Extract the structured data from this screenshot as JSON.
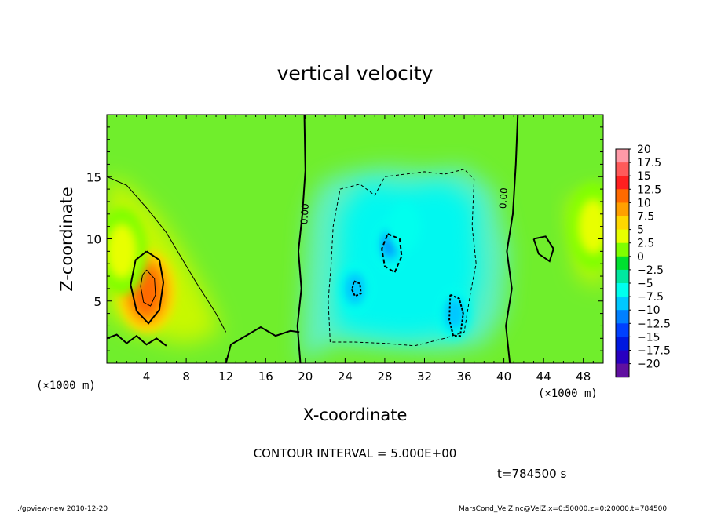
{
  "chart_data": {
    "type": "heatmap",
    "title": "vertical velocity",
    "xlabel": "X-coordinate",
    "ylabel": "Z-coordinate",
    "x_unit_left": "(×1000 m)",
    "x_unit_right": "(×1000 m)",
    "xlim": [
      0,
      50
    ],
    "ylim": [
      0,
      20
    ],
    "x_ticks": [
      4,
      8,
      12,
      16,
      20,
      24,
      28,
      32,
      36,
      40,
      44,
      48
    ],
    "x_tick_labels": [
      "4",
      "8",
      "12",
      "16",
      "20",
      "24",
      "28",
      "32",
      "36",
      "40",
      "44",
      "48"
    ],
    "y_ticks": [
      5,
      10,
      15
    ],
    "y_tick_labels": [
      "5",
      "10",
      "15"
    ],
    "contour_interval_text": "CONTOUR INTERVAL = 5.000E+00",
    "time_text": "t=784500 s",
    "zero_contour_labels": [
      "0.00",
      "0.00"
    ],
    "colorbar": {
      "levels": [
        20,
        17.5,
        15,
        12.5,
        10,
        7.5,
        5,
        2.5,
        0,
        -2.5,
        -5,
        -7.5,
        -10,
        -12.5,
        -15,
        -17.5,
        -20
      ],
      "labels": [
        "20",
        "17.5",
        "15",
        "12.5",
        "10",
        "7.5",
        "5",
        "2.5",
        "0",
        "−2.5",
        "−5",
        "−7.5",
        "−10",
        "−12.5",
        "−15",
        "−17.5",
        "−20"
      ],
      "colors": [
        "#ff9aa8",
        "#ff5a5a",
        "#ff2020",
        "#ff6a00",
        "#ffa000",
        "#ffd800",
        "#e8ff00",
        "#80ff00",
        "#00e030",
        "#00e8a0",
        "#00ffee",
        "#00c8ff",
        "#0080ff",
        "#0040ff",
        "#0018e0",
        "#2800c0",
        "#6010a0"
      ]
    },
    "features": [
      {
        "kind": "updraft",
        "x": 4,
        "z": 5.8,
        "peak": 12.5
      },
      {
        "kind": "weak-updraft",
        "x": 1.5,
        "z": 9,
        "peak": 5
      },
      {
        "kind": "weak-updraft",
        "x": 49,
        "z": 11,
        "peak": 7.5
      },
      {
        "kind": "downdraft",
        "x": 28.5,
        "z": 9.5,
        "peak": -10
      },
      {
        "kind": "downdraft",
        "x": 25,
        "z": 6,
        "peak": -7.5
      },
      {
        "kind": "downdraft",
        "x": 35,
        "z": 4,
        "peak": -7.5
      },
      {
        "kind": "downdraft",
        "x": 30,
        "z": 11,
        "peak": -5
      }
    ]
  },
  "footer": {
    "left": "./gpview-new  2010-12-20",
    "right": "MarsCond_VelZ.nc@VelZ,x=0:50000,z=0:20000,t=784500"
  }
}
